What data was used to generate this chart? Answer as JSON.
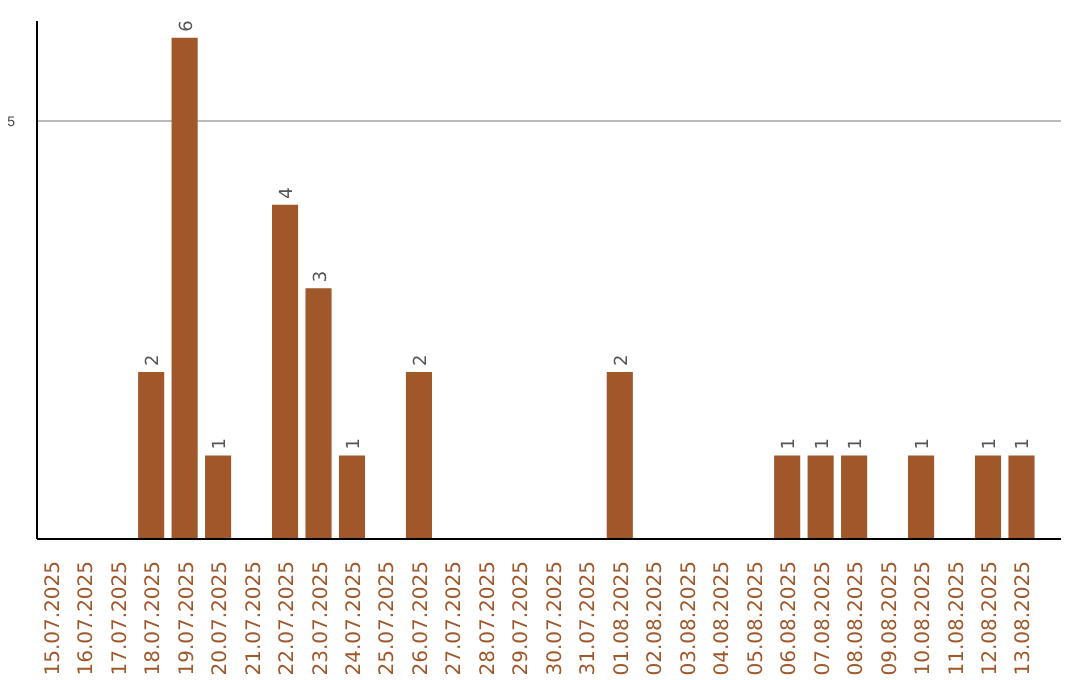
{
  "chart_data": {
    "type": "bar",
    "categories": [
      "15.07.2025",
      "16.07.2025",
      "17.07.2025",
      "18.07.2025",
      "19.07.2025",
      "20.07.2025",
      "21.07.2025",
      "22.07.2025",
      "23.07.2025",
      "24.07.2025",
      "25.07.2025",
      "26.07.2025",
      "27.07.2025",
      "28.07.2025",
      "29.07.2025",
      "30.07.2025",
      "31.07.2025",
      "01.08.2025",
      "02.08.2025",
      "03.08.2025",
      "04.08.2025",
      "05.08.2025",
      "06.08.2025",
      "07.08.2025",
      "08.08.2025",
      "09.08.2025",
      "10.08.2025",
      "11.08.2025",
      "12.08.2025",
      "13.08.2025"
    ],
    "values": [
      0,
      0,
      0,
      2,
      6,
      1,
      0,
      4,
      3,
      1,
      0,
      2,
      0,
      0,
      0,
      0,
      0,
      2,
      0,
      0,
      0,
      0,
      1,
      1,
      1,
      0,
      1,
      0,
      1,
      1
    ],
    "value_labels": [
      null,
      null,
      null,
      "2",
      "6",
      "1",
      null,
      "4",
      "3",
      "1",
      null,
      "2",
      null,
      null,
      null,
      null,
      null,
      "2",
      null,
      null,
      null,
      null,
      "1",
      "1",
      "1",
      null,
      "1",
      null,
      "1",
      "1"
    ],
    "color": "#a0572a",
    "ylim": [
      0,
      6.2
    ],
    "yticks": [
      5
    ],
    "grid": "y"
  }
}
